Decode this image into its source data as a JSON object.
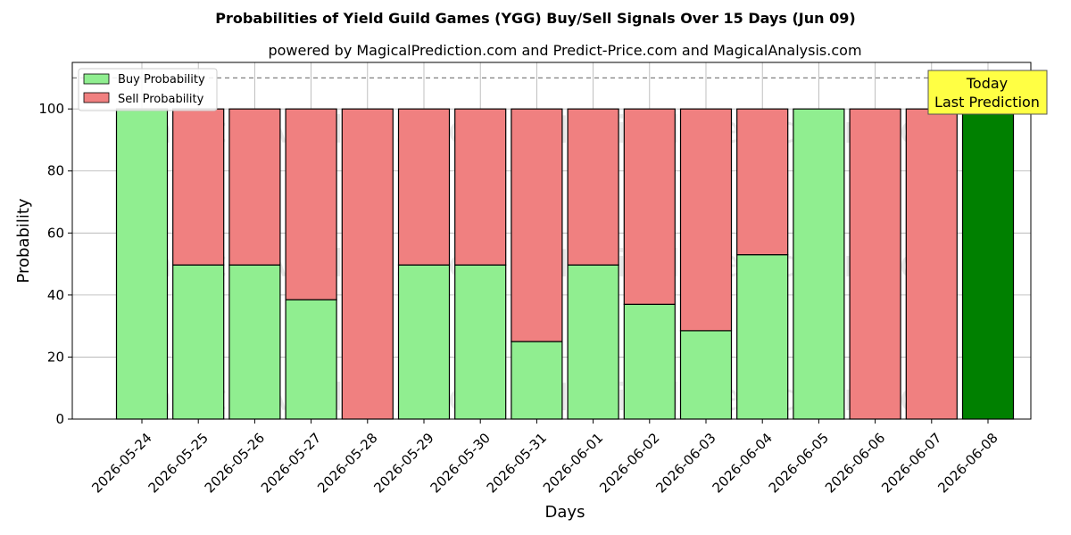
{
  "chart_data": {
    "type": "bar",
    "stacked": true,
    "title": "Probabilities of Yield Guild Games (YGG) Buy/Sell Signals Over 15 Days (Jun 09)",
    "subtitle": "powered by MagicalPrediction.com and Predict-Price.com and MagicalAnalysis.com",
    "xlabel": "Days",
    "ylabel": "Probability",
    "ylim": [
      0,
      115
    ],
    "yticks": [
      0,
      20,
      40,
      60,
      80,
      100
    ],
    "grid": true,
    "legend_position": "top-left",
    "reference_line": 110,
    "categories": [
      "2026-05-24",
      "2026-05-25",
      "2026-05-26",
      "2026-05-27",
      "2026-05-28",
      "2026-05-29",
      "2026-05-30",
      "2026-05-31",
      "2026-06-01",
      "2026-06-02",
      "2026-06-03",
      "2026-06-04",
      "2026-06-05",
      "2026-06-06",
      "2026-06-07",
      "2026-06-08"
    ],
    "series": [
      {
        "name": "Buy Probability",
        "color": "#90ee90",
        "values": [
          100,
          49.7,
          49.7,
          38.5,
          0,
          49.7,
          49.7,
          25,
          49.7,
          37,
          28.5,
          53,
          100,
          0,
          0,
          100
        ]
      },
      {
        "name": "Sell Probability",
        "color": "#f08080",
        "values": [
          0,
          50.3,
          50.3,
          61.5,
          100,
          50.3,
          50.3,
          75,
          50.3,
          63,
          71.5,
          47,
          0,
          100,
          100,
          0
        ]
      }
    ],
    "today_index": 15,
    "today_color": "#008000",
    "annotation": {
      "line1": "Today",
      "line2": "Last Prediction",
      "color": "#ffff44"
    },
    "watermarks": [
      "MagicalAnalysis.com",
      "MagicalPrediction.com"
    ]
  }
}
